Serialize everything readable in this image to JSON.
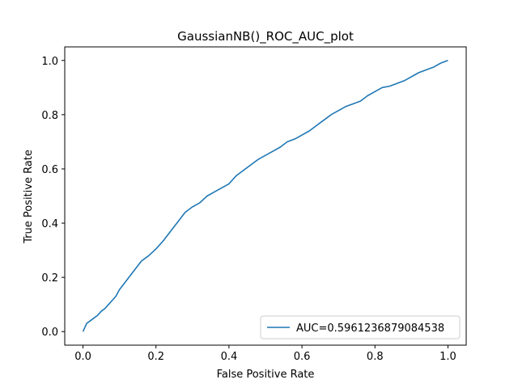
{
  "chart_data": {
    "type": "line",
    "title": "GaussianNB()_ROC_AUC_plot",
    "xlabel": "False Positive Rate",
    "ylabel": "True Positive Rate",
    "xlim": [
      -0.05,
      1.05
    ],
    "ylim": [
      -0.05,
      1.05
    ],
    "xticks": [
      0.0,
      0.2,
      0.4,
      0.6,
      0.8,
      1.0
    ],
    "yticks": [
      0.0,
      0.2,
      0.4,
      0.6,
      0.8,
      1.0
    ],
    "xtick_labels": [
      "0.0",
      "0.2",
      "0.4",
      "0.6",
      "0.8",
      "1.0"
    ],
    "ytick_labels": [
      "0.0",
      "0.2",
      "0.4",
      "0.6",
      "0.8",
      "1.0"
    ],
    "grid": false,
    "legend_position": "lower right",
    "series": [
      {
        "name": "AUC=0.5961236879084538",
        "color": "#1f77b4",
        "x": [
          0.0,
          0.005,
          0.01,
          0.02,
          0.03,
          0.04,
          0.05,
          0.06,
          0.07,
          0.08,
          0.09,
          0.1,
          0.12,
          0.14,
          0.16,
          0.18,
          0.2,
          0.22,
          0.24,
          0.26,
          0.28,
          0.3,
          0.32,
          0.34,
          0.36,
          0.38,
          0.4,
          0.42,
          0.44,
          0.46,
          0.48,
          0.5,
          0.52,
          0.54,
          0.56,
          0.58,
          0.6,
          0.62,
          0.64,
          0.66,
          0.68,
          0.7,
          0.72,
          0.74,
          0.76,
          0.78,
          0.8,
          0.82,
          0.84,
          0.86,
          0.88,
          0.9,
          0.92,
          0.94,
          0.96,
          0.98,
          1.0
        ],
        "y": [
          0.0,
          0.015,
          0.03,
          0.04,
          0.05,
          0.06,
          0.075,
          0.085,
          0.1,
          0.115,
          0.13,
          0.155,
          0.19,
          0.225,
          0.26,
          0.28,
          0.305,
          0.335,
          0.37,
          0.405,
          0.44,
          0.46,
          0.475,
          0.5,
          0.515,
          0.53,
          0.545,
          0.575,
          0.595,
          0.615,
          0.635,
          0.65,
          0.665,
          0.68,
          0.7,
          0.71,
          0.725,
          0.74,
          0.76,
          0.78,
          0.8,
          0.815,
          0.83,
          0.84,
          0.85,
          0.87,
          0.885,
          0.9,
          0.905,
          0.915,
          0.925,
          0.94,
          0.955,
          0.965,
          0.975,
          0.99,
          1.0
        ]
      }
    ]
  }
}
